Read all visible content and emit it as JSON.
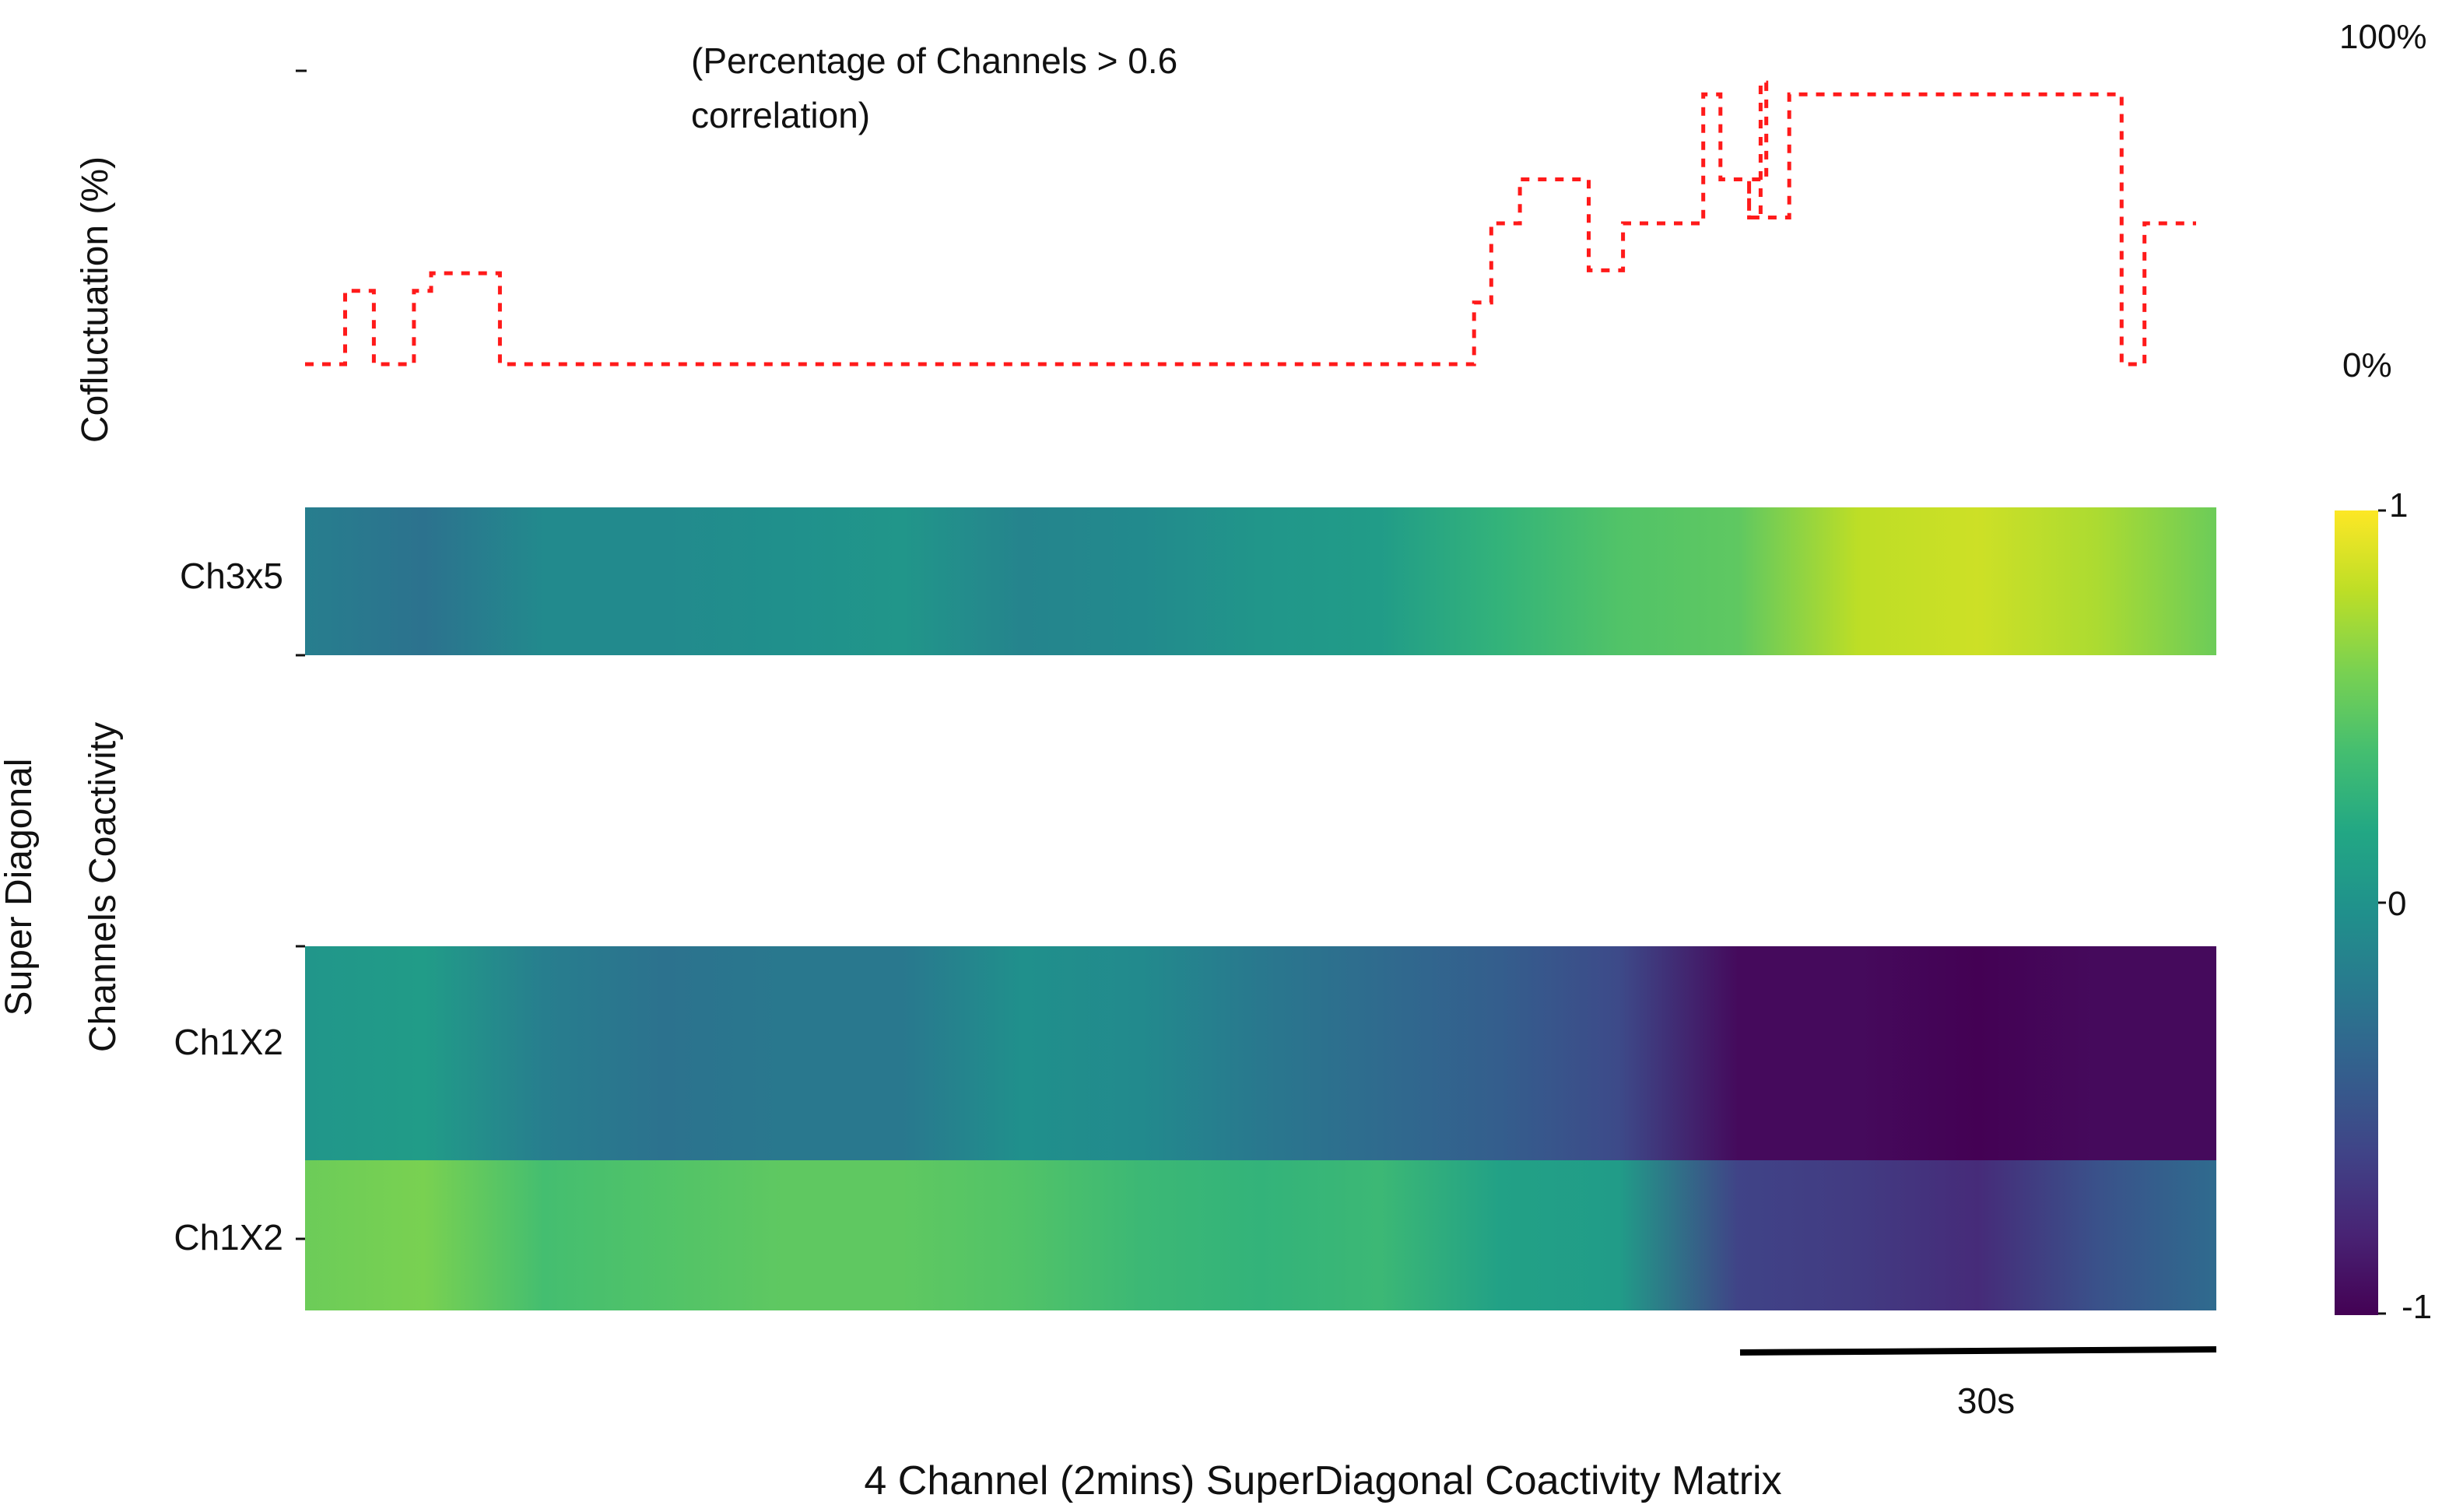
{
  "chart_data": [
    {
      "type": "line",
      "ylabel": "Cofluctuation (%)",
      "annotation": [
        "(Percentage of Channels > 0.6",
        "correlation)"
      ],
      "right_ticks": [
        "100%",
        "0%"
      ],
      "ylim": [
        0,
        100
      ],
      "series_color": "#ff1a1a",
      "line_style": "dotted",
      "steps": [
        [
          0,
          0
        ],
        [
          0.35,
          0
        ],
        [
          0.35,
          25
        ],
        [
          0.6,
          25
        ],
        [
          0.6,
          0
        ],
        [
          0.95,
          0
        ],
        [
          0.95,
          25
        ],
        [
          1.1,
          25
        ],
        [
          1.1,
          31
        ],
        [
          1.6,
          31
        ],
        [
          1.6,
          31
        ],
        [
          1.7,
          31
        ],
        [
          1.7,
          0
        ],
        [
          10.2,
          0
        ],
        [
          10.2,
          21
        ],
        [
          10.35,
          21
        ],
        [
          10.35,
          48
        ],
        [
          10.6,
          48
        ],
        [
          10.6,
          63
        ],
        [
          11.2,
          63
        ],
        [
          11.2,
          32
        ],
        [
          11.5,
          32
        ],
        [
          11.5,
          48
        ],
        [
          12.2,
          48
        ],
        [
          12.2,
          92
        ],
        [
          12.35,
          92
        ],
        [
          12.35,
          63
        ],
        [
          12.6,
          63
        ],
        [
          12.6,
          50
        ],
        [
          12.7,
          50
        ],
        [
          12.7,
          96
        ],
        [
          12.75,
          96
        ],
        [
          12.75,
          63
        ],
        [
          12.6,
          63
        ],
        [
          12.6,
          50
        ],
        [
          12.95,
          50
        ],
        [
          12.95,
          92
        ],
        [
          15.85,
          92
        ],
        [
          15.85,
          0
        ],
        [
          16.05,
          0
        ],
        [
          16.05,
          48
        ],
        [
          16.5,
          48
        ]
      ]
    },
    {
      "type": "heatmap",
      "ylabel_lines": [
        "Super Diagonal",
        "Channels Coactivity"
      ],
      "rows": [
        "Ch3x5",
        "Ch1X2",
        "Ch1X2"
      ],
      "colorbar": {
        "colormap": "viridis",
        "ticks": [
          "1",
          "0",
          "-1"
        ],
        "range": [
          -1,
          1
        ]
      },
      "x": [
        0,
        1,
        2,
        3,
        4,
        5,
        6,
        7,
        8,
        9,
        10,
        11,
        12,
        13,
        14,
        15,
        16
      ],
      "values": [
        [
          -0.15,
          -0.25,
          -0.05,
          -0.05,
          0.0,
          0.05,
          -0.1,
          -0.05,
          0.05,
          0.1,
          0.3,
          0.45,
          0.5,
          0.8,
          0.85,
          0.75,
          0.55
        ],
        [
          0.05,
          0.1,
          -0.15,
          -0.25,
          -0.2,
          -0.2,
          0.0,
          -0.05,
          -0.2,
          -0.3,
          -0.4,
          -0.55,
          -0.95,
          -0.95,
          -1.0,
          -0.95,
          -0.95
        ],
        [
          0.55,
          0.6,
          0.4,
          0.45,
          0.5,
          0.5,
          0.45,
          0.35,
          0.3,
          0.35,
          0.15,
          0.1,
          -0.6,
          -0.65,
          -0.75,
          -0.5,
          -0.3
        ]
      ],
      "scale_bar_label": "30s",
      "xlabel": "4 Channel (2mins) SuperDiagonal Coactivity Matrix"
    }
  ]
}
